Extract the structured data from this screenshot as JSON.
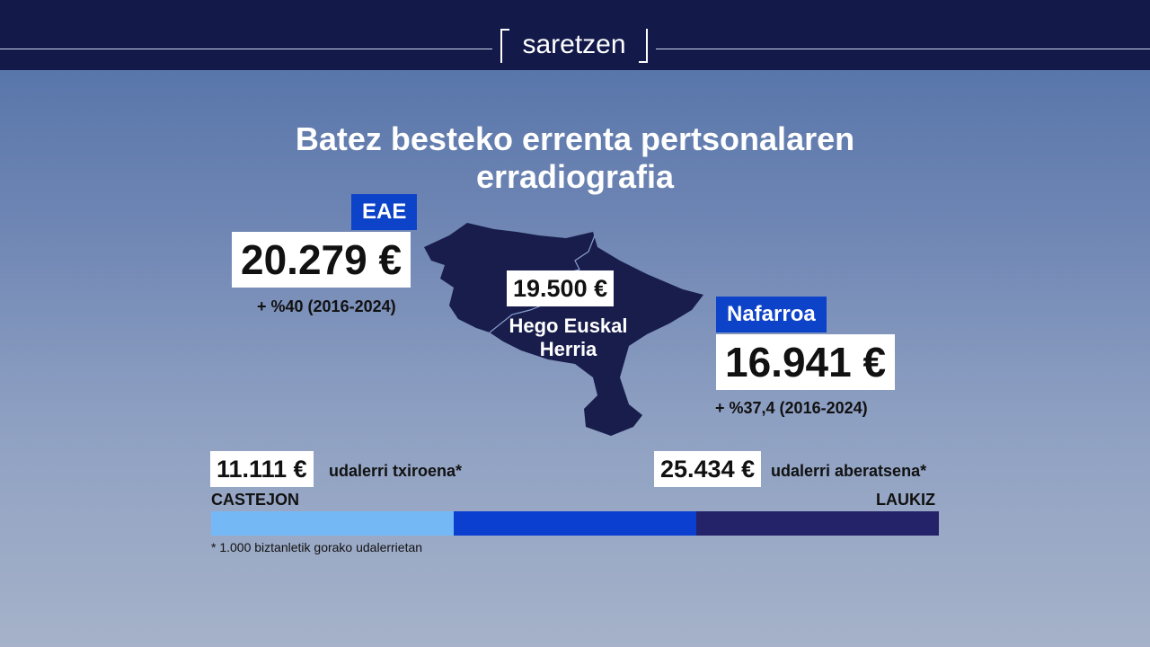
{
  "header": {
    "logo": "saretzen"
  },
  "title": "Batez besteko errenta pertsonalaren erradiografia",
  "eae": {
    "label": "EAE",
    "value": "20.279 €",
    "change": "+ %40 (2016-2024)"
  },
  "hego_euskal_herria": {
    "value": "19.500 €",
    "label": "Hego Euskal Herria"
  },
  "nafarroa": {
    "label": "Nafarroa",
    "value": "16.941 €",
    "change": "+ %37,4 (2016-2024)"
  },
  "range": {
    "min": {
      "value": "11.111 €",
      "label": "udalerri txiroena*",
      "place": "CASTEJON"
    },
    "max": {
      "value": "25.434 €",
      "label": "udalerri aberatsena*",
      "place": "LAUKIZ"
    },
    "footnote": "* 1.000 biztanletik gorako udalerrietan"
  }
}
